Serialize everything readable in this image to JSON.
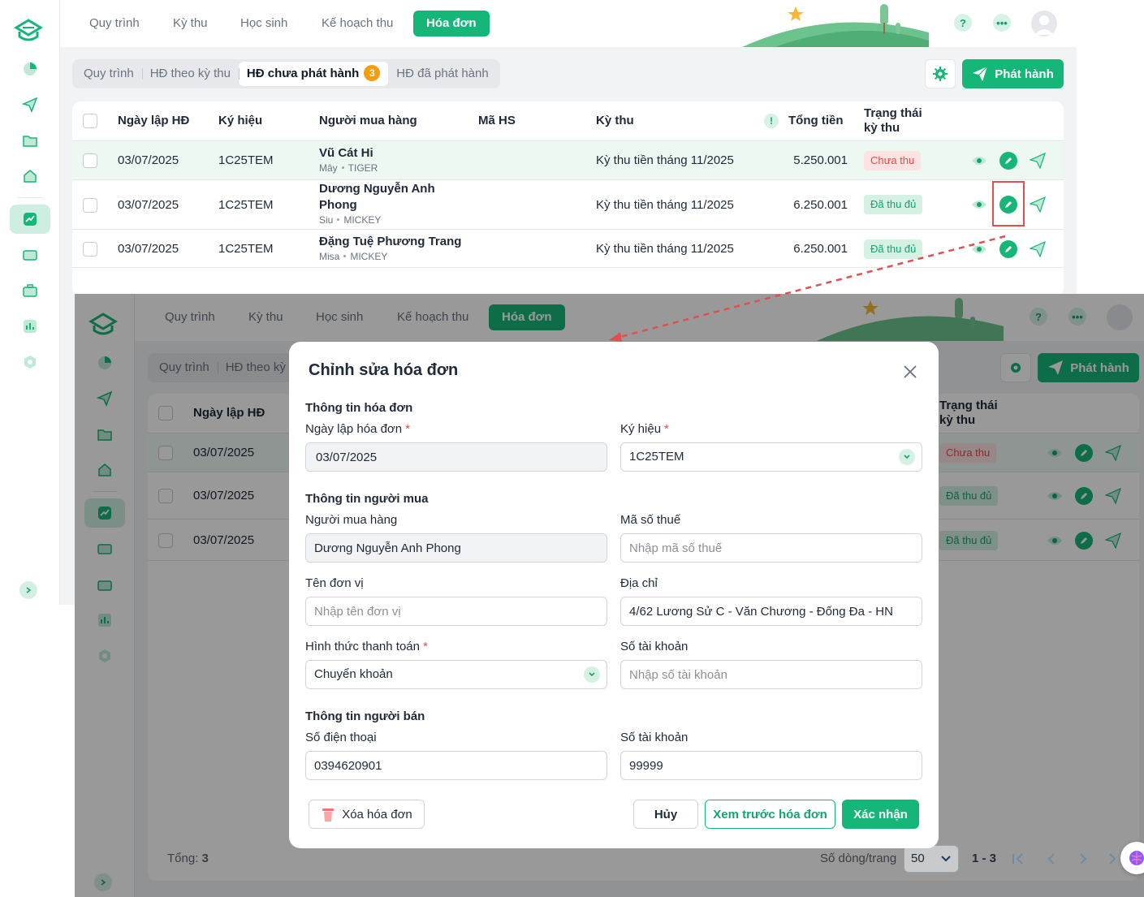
{
  "nav": {
    "tabs": [
      "Quy trình",
      "Kỳ thu",
      "Học sinh",
      "Kế hoạch thu",
      "Hóa đơn"
    ],
    "help_icon": "?",
    "more_icon": "•••"
  },
  "subtabs": {
    "items": [
      "Quy trình",
      "HĐ theo kỳ thu",
      "HĐ chưa phát hành",
      "HĐ đã phát hành"
    ],
    "badge": "3"
  },
  "toolbar": {
    "publish_label": "Phát hành"
  },
  "table": {
    "headers": {
      "date": "Ngày lập HĐ",
      "symbol": "Ký hiệu",
      "buyer": "Người mua hàng",
      "student_code": "Mã HS",
      "period": "Kỳ thu",
      "total": "Tổng tiền",
      "status_line1": "Trạng thái",
      "status_line2": "kỳ thu",
      "total_info_icon": "!"
    },
    "rows": [
      {
        "date": "03/07/2025",
        "symbol": "1C25TEM",
        "buyer_line1": "Vũ Cát Hi",
        "buyer_line2": "",
        "student": "Mây",
        "class": "TIGER",
        "period": "Kỳ thu tiền tháng 11/2025",
        "total": "5.250.001",
        "status": "Chưa thu"
      },
      {
        "date": "03/07/2025",
        "symbol": "1C25TEM",
        "buyer_line1": "Dương Nguyễn Anh",
        "buyer_line2": "Phong",
        "student": "Siu",
        "class": "MICKEY",
        "period": "Kỳ thu tiền tháng 11/2025",
        "total": "6.250.001",
        "status": "Đã thu đủ"
      },
      {
        "date": "03/07/2025",
        "symbol": "1C25TEM",
        "buyer_line1": "Đặng Tuệ Phương Trang",
        "buyer_line2": "",
        "student": "Misa",
        "class": "MICKEY",
        "period": "Kỳ thu tiền tháng 11/2025",
        "total": "6.250.001",
        "status": "Đã thu đủ"
      }
    ]
  },
  "footer": {
    "total_label": "Tổng:",
    "total_value": "3",
    "rows_per_page_label": "Số dòng/trang",
    "rows_per_page": "50",
    "range": "1 - 3"
  },
  "modal": {
    "title": "Chỉnh sửa hóa đơn",
    "section_invoice": "Thông tin hóa đơn",
    "section_buyer": "Thông tin người mua",
    "section_seller": "Thông tin người bán",
    "fields": {
      "invoice_date": {
        "label": "Ngày lập hóa đơn",
        "value": "03/07/2025"
      },
      "symbol": {
        "label": "Ký hiệu",
        "value": "1C25TEM"
      },
      "buyer": {
        "label": "Người mua hàng",
        "value": "Dương Nguyễn Anh Phong"
      },
      "tax_code": {
        "label": "Mã số thuế",
        "value": "",
        "placeholder": "Nhập mã số thuế"
      },
      "unit_name": {
        "label": "Tên đơn vị",
        "value": "",
        "placeholder": "Nhập tên đơn vị"
      },
      "address": {
        "label": "Địa chỉ",
        "value": "4/62 Lương Sử C - Văn Chương - Đống Đa - HN"
      },
      "payment_method": {
        "label": "Hình thức thanh toán",
        "value": "Chuyển khoản"
      },
      "buyer_account": {
        "label": "Số tài khoản",
        "value": "",
        "placeholder": "Nhập số tài khoản"
      },
      "phone": {
        "label": "Số điện thoại",
        "value": "0394620901"
      },
      "seller_account": {
        "label": "Số tài khoản",
        "value": "99999"
      }
    },
    "required_mark": "*",
    "buttons": {
      "delete": "Xóa hóa đơn",
      "cancel": "Hủy",
      "preview": "Xem trước hóa đơn",
      "confirm": "Xác nhận"
    }
  },
  "colors": {
    "brand": "#16b679",
    "unpaid_text": "#e24b4b",
    "paid_text": "#16a36f",
    "highlight": "#e05050"
  }
}
